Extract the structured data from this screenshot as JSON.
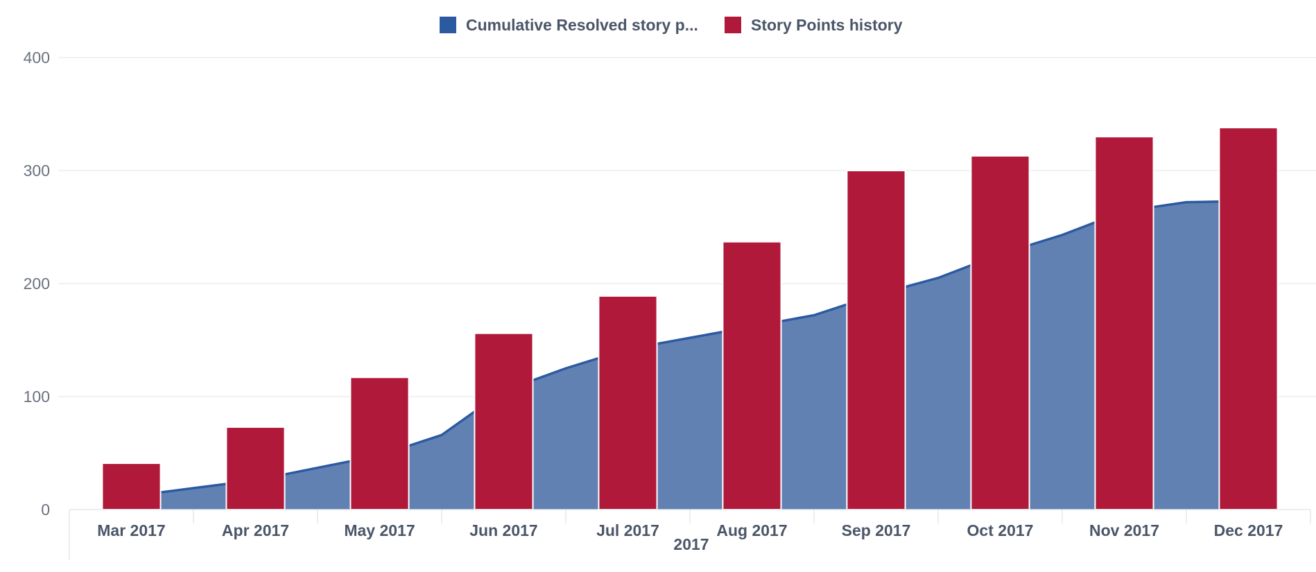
{
  "chart_data": {
    "type": "bar+area",
    "title": "",
    "xlabel": "2017",
    "ylabel": "",
    "categories": [
      "Mar 2017",
      "Apr 2017",
      "May 2017",
      "Jun 2017",
      "Jul 2017",
      "Aug 2017",
      "Sep 2017",
      "Oct 2017",
      "Nov 2017",
      "Dec 2017"
    ],
    "ylim": [
      0,
      400
    ],
    "yticks": [
      0,
      100,
      200,
      300,
      400
    ],
    "grid": true,
    "legend_position": "top-center",
    "series": [
      {
        "name": "Cumulative Resolved story p...",
        "type": "area",
        "color": "#2c5aa0",
        "fill": "#6281b3",
        "x": [
          0.5,
          1.0,
          1.5,
          2.0,
          2.5,
          3.0,
          3.5,
          4.0,
          4.5,
          5.0,
          5.5,
          6.0,
          6.5,
          7.0,
          7.5,
          8.0,
          8.5,
          9.0,
          9.5
        ],
        "values": [
          12,
          19,
          26,
          37,
          48,
          66,
          105,
          125,
          142,
          152,
          162,
          172,
          190,
          205,
          226,
          243,
          264,
          272,
          273
        ]
      },
      {
        "name": "Story Points history",
        "type": "bar",
        "color": "#b0193a",
        "values": [
          41,
          73,
          117,
          156,
          189,
          237,
          300,
          313,
          330,
          338
        ]
      }
    ]
  }
}
